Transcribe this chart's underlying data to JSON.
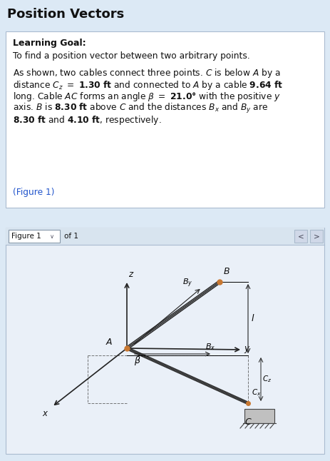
{
  "title": "Position Vectors",
  "title_fontsize": 13,
  "title_fontweight": "bold",
  "bg_color": "#dce9f5",
  "box_bg": "#ffffff",
  "box_border": "#aabbd0",
  "link_color": "#2255cc",
  "text_color": "#111111",
  "learning_goal_label": "Learning Goal:",
  "learning_goal_text": "To find a position vector between two arbitrary points.",
  "figure_label": "Figure 1",
  "figure_nav": "of 1",
  "figure_panel_bg": "#eaf0f8",
  "figure_header_bg": "#d8e4ef",
  "gap_color": "#dce9f5",
  "nav_btn_bg": "#d0d8e8",
  "nav_btn_border": "#aabbcc"
}
